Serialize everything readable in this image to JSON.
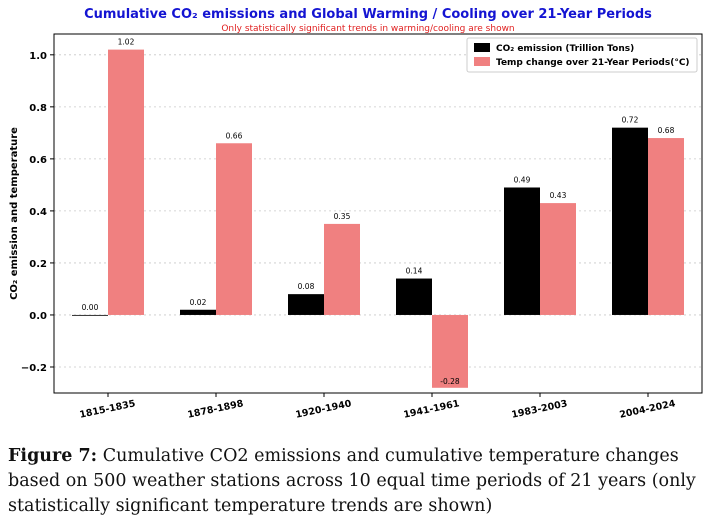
{
  "chart_data": {
    "type": "bar",
    "title": "Cumulative CO₂ emissions and Global Warming / Cooling over 21-Year Periods",
    "subtitle": "Only statistically significant trends in warming/cooling are shown",
    "ylabel": "CO₂ emission and temperature",
    "xlabel": "",
    "categories": [
      "1815-1835",
      "1878-1898",
      "1920-1940",
      "1941-1961",
      "1983-2003",
      "2004-2024"
    ],
    "series": [
      {
        "name": "CO₂ emission (Trillion Tons)",
        "color": "#000000",
        "values": [
          0.0,
          0.02,
          0.08,
          0.14,
          0.49,
          0.72
        ],
        "labels": [
          "0.00",
          "0.02",
          "0.08",
          "0.14",
          "0.49",
          "0.72"
        ]
      },
      {
        "name": "Temp change over 21-Year Periods(°C)",
        "color": "#f08080",
        "values": [
          1.02,
          0.66,
          0.35,
          -0.28,
          0.43,
          0.68
        ],
        "labels": [
          "1.02",
          "0.66",
          "0.35",
          "-0.28",
          "0.43",
          "0.68"
        ]
      }
    ],
    "ylim": [
      -0.3,
      1.08
    ],
    "yticks": [
      -0.2,
      0.0,
      0.2,
      0.4,
      0.6,
      0.8,
      1.0
    ],
    "ytick_labels": [
      "−0.2",
      "0.0",
      "0.2",
      "0.4",
      "0.6",
      "0.8",
      "1.0"
    ],
    "grid": "horizontal dashed",
    "legend_position": "top-right",
    "title_color": "#1414d2",
    "subtitle_color": "#e02020"
  },
  "caption": {
    "label": "Figure 7:",
    "text": " Cumulative CO2 emissions and cumulative temperature changes based on 500 weather stations across 10 equal time periods of 21 years (only statistically significant temperature trends are shown)"
  }
}
